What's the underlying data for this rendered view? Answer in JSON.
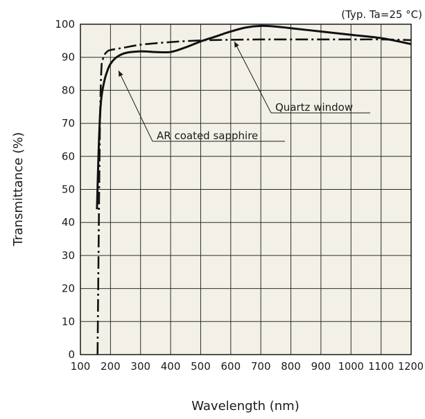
{
  "chart_data": {
    "type": "line",
    "note": "(Typ. Ta=25 °C)",
    "xlabel": "Wavelength (nm)",
    "ylabel": "Transmittance (%)",
    "xlim": [
      100,
      1200
    ],
    "ylim": [
      0,
      100
    ],
    "x_ticks": [
      100,
      200,
      300,
      400,
      500,
      600,
      700,
      800,
      900,
      1000,
      1100,
      1200
    ],
    "y_ticks": [
      0,
      10,
      20,
      30,
      40,
      50,
      60,
      70,
      80,
      90,
      100
    ],
    "x_tick_labels": [
      "100",
      "200",
      "300",
      "400",
      "500",
      "600",
      "700",
      "800",
      "900",
      "1000",
      "1100",
      "1200"
    ],
    "y_tick_labels": [
      "0",
      "10",
      "20",
      "30",
      "40",
      "50",
      "60",
      "70",
      "80",
      "90",
      "100"
    ],
    "grid": true,
    "series": [
      {
        "name": "AR coated sapphire",
        "line_style": "solid",
        "x": [
          155,
          160,
          165,
          170,
          180,
          190,
          200,
          220,
          250,
          300,
          350,
          400,
          450,
          500,
          550,
          600,
          650,
          700,
          750,
          800,
          900,
          1000,
          1100,
          1200
        ],
        "y": [
          44,
          60,
          72,
          78,
          83,
          86,
          88,
          90,
          91.3,
          91.8,
          91.6,
          91.6,
          93,
          94.8,
          96.3,
          97.8,
          99,
          99.5,
          99.3,
          98.8,
          97.8,
          96.8,
          95.8,
          94
        ]
      },
      {
        "name": "Quartz window",
        "line_style": "dash-dot",
        "x": [
          157,
          160,
          163,
          166,
          170,
          175,
          180,
          190,
          200,
          250,
          300,
          400,
          500,
          600,
          700,
          800,
          900,
          1000,
          1100,
          1200
        ],
        "y": [
          0,
          28,
          55,
          75,
          87,
          89.5,
          90.8,
          91.8,
          92.2,
          93,
          93.8,
          94.6,
          95.1,
          95.3,
          95.4,
          95.4,
          95.4,
          95.4,
          95.4,
          95.2
        ]
      }
    ],
    "annotations": [
      {
        "text": "Quartz window",
        "target_series": "Quartz window"
      },
      {
        "text": "AR coated sapphire",
        "target_series": "AR coated sapphire"
      }
    ]
  }
}
